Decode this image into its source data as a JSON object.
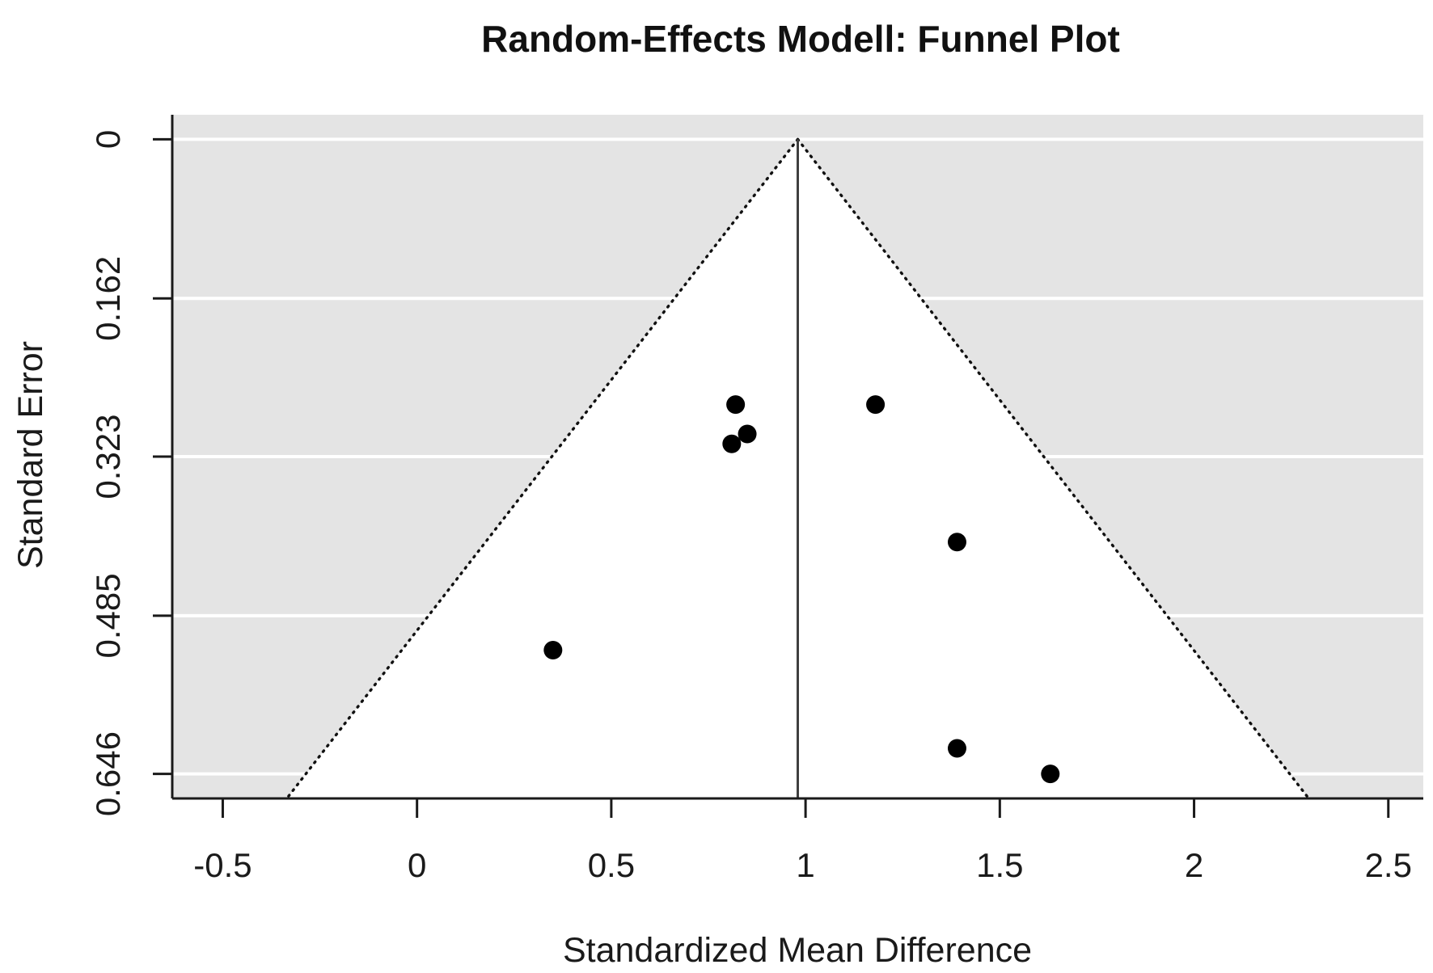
{
  "chart_data": {
    "type": "scatter",
    "variant": "funnel-plot",
    "title": "Random-Effects Modell: Funnel Plot",
    "xlabel": "Standardized Mean Difference",
    "ylabel": "Standard Error",
    "grid": true,
    "legend": false,
    "xlim": [
      -0.63,
      2.59
    ],
    "ylim": [
      -0.025,
      0.671
    ],
    "x_axis": {
      "ticks": [
        {
          "value": -0.5,
          "label": "-0.5"
        },
        {
          "value": 0,
          "label": "0"
        },
        {
          "value": 0.5,
          "label": "0.5"
        },
        {
          "value": 1,
          "label": "1"
        },
        {
          "value": 1.5,
          "label": "1.5"
        },
        {
          "value": 2,
          "label": "2"
        },
        {
          "value": 2.5,
          "label": "2.5"
        }
      ]
    },
    "y_axis": {
      "ticks": [
        {
          "value": 0,
          "label": "0"
        },
        {
          "value": 0.162,
          "label": "0.162"
        },
        {
          "value": 0.323,
          "label": "0.323"
        },
        {
          "value": 0.485,
          "label": "0.485"
        },
        {
          "value": 0.646,
          "label": "0.646"
        }
      ]
    },
    "estimate": 0.98,
    "ci_multiplier": 1.96,
    "points": [
      {
        "smd": 0.82,
        "se": 0.27
      },
      {
        "smd": 0.85,
        "se": 0.3
      },
      {
        "smd": 0.81,
        "se": 0.31
      },
      {
        "smd": 1.18,
        "se": 0.27
      },
      {
        "smd": 1.39,
        "se": 0.41
      },
      {
        "smd": 0.35,
        "se": 0.52
      },
      {
        "smd": 1.39,
        "se": 0.62
      },
      {
        "smd": 1.63,
        "se": 0.646
      }
    ],
    "colors": {
      "background": "#ffffff",
      "shade": "#e4e4e4",
      "funnel_fill": "#ffffff",
      "gridline": "#ffffff",
      "axis": "#1a1a1a",
      "funnel_border": "#111111",
      "reference_line": "#3f3f3f",
      "point": "#000000",
      "text": "#1a1a1a"
    }
  }
}
